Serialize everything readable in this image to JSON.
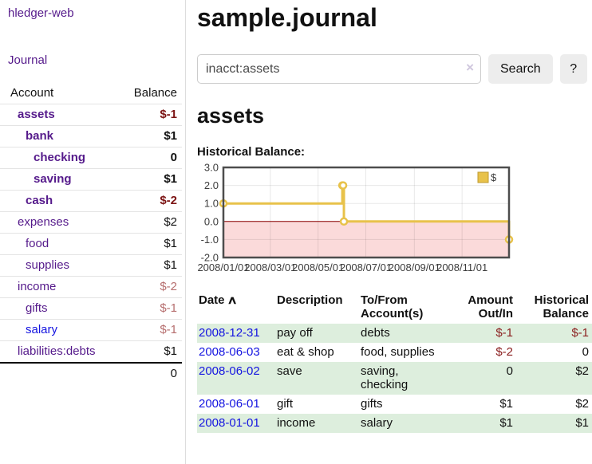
{
  "app": {
    "brand": "hledger-web"
  },
  "sidebar": {
    "journal_link": "Journal",
    "header": {
      "account": "Account",
      "balance": "Balance"
    },
    "accounts": [
      {
        "name": "assets",
        "balance": "$-1"
      },
      {
        "name": "bank",
        "balance": "$1"
      },
      {
        "name": "checking",
        "balance": "0"
      },
      {
        "name": "saving",
        "balance": "$1"
      },
      {
        "name": "cash",
        "balance": "$-2"
      },
      {
        "name": "expenses",
        "balance": "$2"
      },
      {
        "name": "food",
        "balance": "$1"
      },
      {
        "name": "supplies",
        "balance": "$1"
      },
      {
        "name": "income",
        "balance": "$-2"
      },
      {
        "name": "gifts",
        "balance": "$-1"
      },
      {
        "name": "salary",
        "balance": "$-1"
      },
      {
        "name": "liabilities:debts",
        "balance": "$1"
      }
    ],
    "total": "0"
  },
  "main": {
    "title": "sample.journal",
    "search": {
      "value": "inacct:assets",
      "clear_icon": "×",
      "search_button": "Search",
      "help_button": "?"
    },
    "account_heading": "assets",
    "chart_title": "Historical Balance:"
  },
  "register": {
    "columns": {
      "date": "Date",
      "sort_icon": "∧",
      "description": "Description",
      "tofrom": "To/From Account(s)",
      "amount": "Amount Out/In",
      "balance": "Historical Balance"
    },
    "rows": [
      {
        "date": "2008-12-31",
        "description": "pay off",
        "accounts": "debts",
        "amount": "$-1",
        "balance": "$-1"
      },
      {
        "date": "2008-06-03",
        "description": "eat & shop",
        "accounts": "food, supplies",
        "amount": "$-2",
        "balance": "0"
      },
      {
        "date": "2008-06-02",
        "description": "save",
        "accounts": "saving, checking",
        "amount": "0",
        "balance": "$2"
      },
      {
        "date": "2008-06-01",
        "description": "gift",
        "accounts": "gifts",
        "amount": "$1",
        "balance": "$2"
      },
      {
        "date": "2008-01-01",
        "description": "income",
        "accounts": "salary",
        "amount": "$1",
        "balance": "$1"
      }
    ]
  },
  "chart_data": {
    "type": "line",
    "step": true,
    "title": "Historical Balance:",
    "series": [
      {
        "name": "$",
        "color": "#e8c24a",
        "points": [
          [
            "2008-01-01",
            1
          ],
          [
            "2008-06-01",
            2
          ],
          [
            "2008-06-02",
            2
          ],
          [
            "2008-06-03",
            0
          ],
          [
            "2008-12-31",
            -1
          ]
        ]
      }
    ],
    "x_range": [
      "2008-01-01",
      "2008-12-31"
    ],
    "ylim": [
      -2,
      3
    ],
    "y_ticks": [
      "3.0",
      "2.0",
      "1.0",
      "0.0",
      "-1.0",
      "-2.0"
    ],
    "x_ticks": [
      {
        "date": "2008-01-01",
        "label": "2008/01/01"
      },
      {
        "date": "2008-03-01",
        "label": "2008/03/01"
      },
      {
        "date": "2008-05-01",
        "label": "2008/05/01"
      },
      {
        "date": "2008-07-01",
        "label": "2008/07/01"
      },
      {
        "date": "2008-09-01",
        "label": "2008/09/01"
      },
      {
        "date": "2008-11-01",
        "label": "2008/11/01"
      }
    ],
    "legend": {
      "label": "$",
      "position": "top-right",
      "swatch_color": "#e8c24a"
    },
    "grid": true,
    "negative_region_color": "#fbdada",
    "zero_line_color": "#8b0000"
  }
}
